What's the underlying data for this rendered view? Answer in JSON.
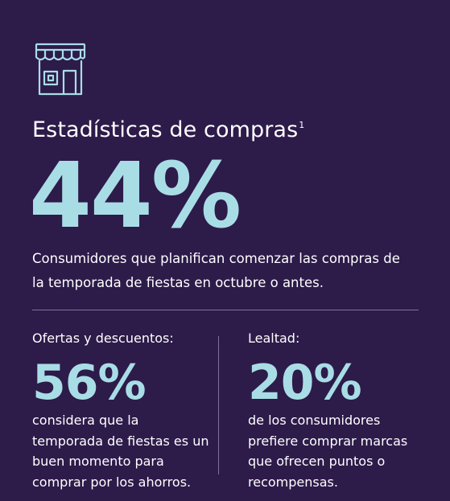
{
  "header": {
    "icon": "storefront-icon",
    "title": "Estadísticas de compras",
    "footnote": "1"
  },
  "headline_stat": {
    "value": "44%",
    "description": "Consumidores que planifican comenzar las compras de la temporada de fiestas en octubre o antes."
  },
  "stats": [
    {
      "label": "Ofertas y descuentos:",
      "value": "56%",
      "description": "considera que la temporada de fiestas es un buen momento para comprar por los ahorros."
    },
    {
      "label": "Lealtad:",
      "value": "20%",
      "description": "de los consumidores prefiere comprar marcas que ofrecen puntos o recompensas."
    }
  ],
  "colors": {
    "background": "#2d1b4a",
    "accent": "#a9dde6",
    "text": "#ffffff",
    "divider": "#7f7399"
  }
}
